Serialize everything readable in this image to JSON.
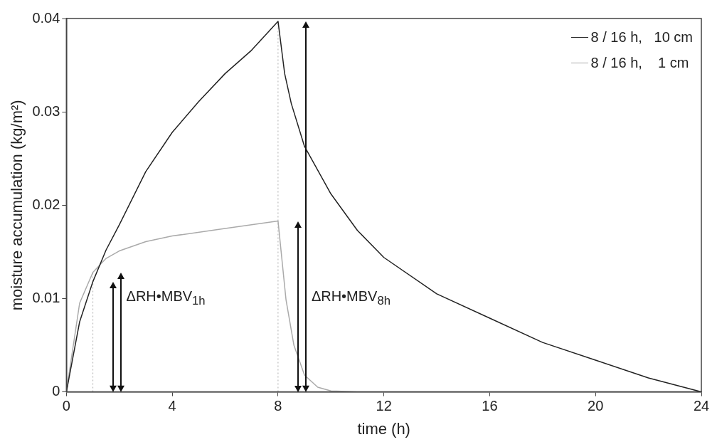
{
  "chart_data": {
    "type": "line",
    "xlabel": "time (h)",
    "ylabel": "moisture accumulation (kg/m²)",
    "xlim": [
      0,
      24
    ],
    "xticks": [
      0,
      4,
      8,
      12,
      16,
      20,
      24
    ],
    "ylim": [
      0,
      0.04
    ],
    "yticks": [
      0,
      0.01,
      0.02,
      0.03,
      0.04
    ],
    "grid": false,
    "legend": "top right",
    "marker": "none",
    "line_style": "solid",
    "series": [
      {
        "name": "8 / 16 h,   10 cm",
        "color": "#222222",
        "x": [
          0,
          0.5,
          1,
          1.5,
          2,
          3,
          4,
          5,
          6,
          7,
          8,
          8.25,
          8.5,
          9,
          10,
          11,
          12,
          14,
          16,
          18,
          20,
          22,
          24
        ],
        "values": [
          0,
          0.0075,
          0.0118,
          0.0152,
          0.0179,
          0.0236,
          0.0278,
          0.0311,
          0.0341,
          0.0366,
          0.0397,
          0.0341,
          0.0309,
          0.0263,
          0.0212,
          0.0173,
          0.0144,
          0.0105,
          0.0079,
          0.0053,
          0.0034,
          0.0015,
          0
        ]
      },
      {
        "name": "8 / 16 h,    1 cm",
        "color": "#aaaaaa",
        "x": [
          0,
          0.5,
          1,
          1.5,
          2,
          3,
          4,
          6,
          8,
          8.3,
          8.6,
          9,
          9.5,
          10,
          11,
          24
        ],
        "values": [
          0,
          0.0095,
          0.0128,
          0.0143,
          0.0151,
          0.0161,
          0.0167,
          0.0175,
          0.0183,
          0.0099,
          0.005,
          0.0018,
          0.0005,
          0.0001,
          0,
          0
        ]
      }
    ],
    "ref_lines": [
      {
        "axis": "x",
        "value": 1,
        "label": null,
        "color": "#bbbbbb",
        "line_style": "dotted"
      },
      {
        "axis": "x",
        "value": 8,
        "label": null,
        "color": "#bbbbbb",
        "line_style": "dotted"
      }
    ],
    "annotations": [
      "ΔRH•MBV$_{1h}$",
      "ΔRH•MBV$_{8h}$"
    ]
  }
}
